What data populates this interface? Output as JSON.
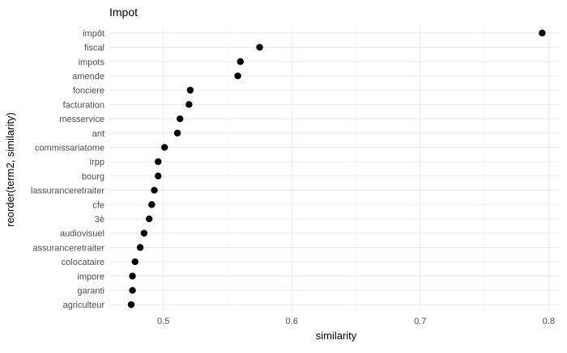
{
  "chart_data": {
    "type": "scatter",
    "title": "Impot",
    "xlabel": "similarity",
    "ylabel": "reorder(term2, similarity)",
    "xlim": [
      0.458,
      0.808
    ],
    "x_ticks": [
      0.5,
      0.6,
      0.7,
      0.8
    ],
    "x_tick_labels": [
      "0.5",
      "0.6",
      "0.7",
      "0.8"
    ],
    "grid": true,
    "legend": "none",
    "point_color": "#000000",
    "categories": [
      "impôt",
      "fiscal",
      "impots",
      "amende",
      "fonciere",
      "facturation",
      "messervice",
      "ant",
      "commissariatome",
      "irpp",
      "bourg",
      "lassuranceretraiter",
      "cfe",
      "3è",
      "audiovisuel",
      "assuranceretraiter",
      "colocataire",
      "impore",
      "garanti",
      "agriculteur"
    ],
    "values": [
      0.795,
      0.575,
      0.56,
      0.558,
      0.521,
      0.52,
      0.513,
      0.511,
      0.501,
      0.496,
      0.496,
      0.493,
      0.491,
      0.489,
      0.485,
      0.482,
      0.478,
      0.476,
      0.476,
      0.475
    ]
  }
}
